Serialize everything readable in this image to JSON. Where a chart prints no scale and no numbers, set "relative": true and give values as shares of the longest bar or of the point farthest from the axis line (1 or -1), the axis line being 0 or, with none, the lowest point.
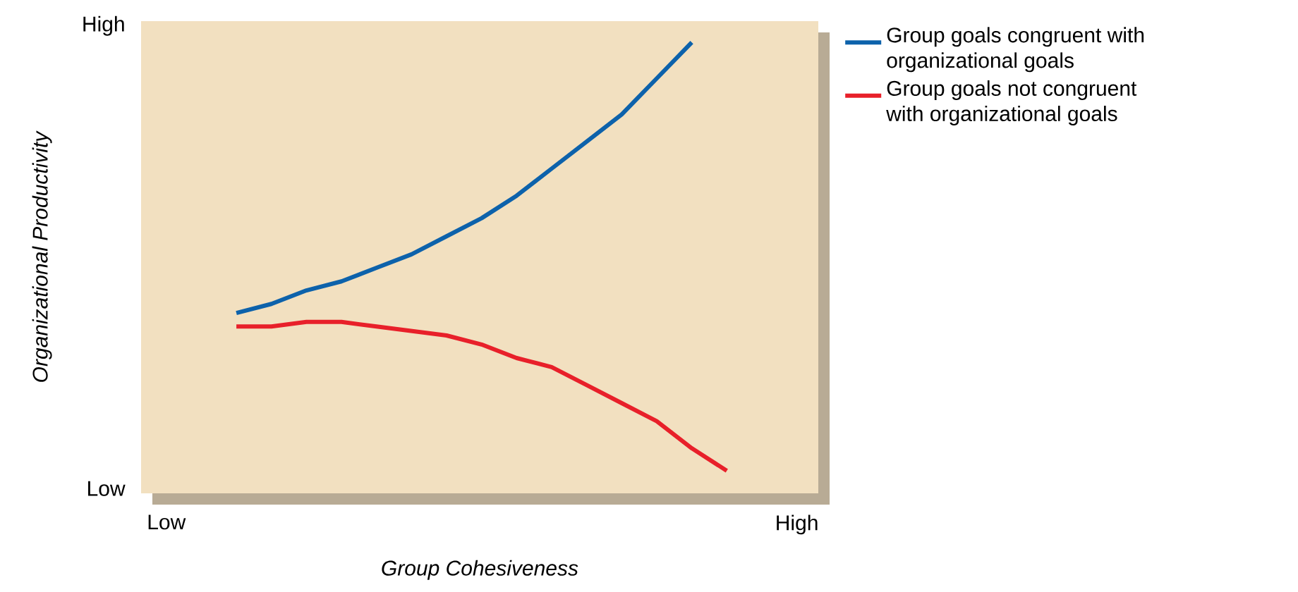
{
  "chart_data": {
    "type": "line",
    "relative": true,
    "xlabel": "Group Cohesiveness",
    "ylabel": "Organizational Productivity",
    "categories": [
      "Low",
      null,
      null,
      null,
      null,
      null,
      null,
      null,
      null,
      null,
      null,
      null,
      null,
      null,
      null,
      null,
      null,
      null,
      "High"
    ],
    "annotations": [
      "Low",
      "High"
    ],
    "series": [
      {
        "name": "Group goals congruent with organizational goals",
        "color": "#0d62ab",
        "values": [
          null,
          null,
          0.4,
          0.42,
          0.45,
          0.47,
          0.5,
          0.53,
          0.57,
          0.61,
          0.66,
          0.72,
          0.78,
          0.84,
          0.92,
          1.0,
          null,
          null,
          null
        ]
      },
      {
        "name": "Group goals not congruent with organizational goals",
        "color": "#e8202a",
        "values": [
          null,
          null,
          0.37,
          0.37,
          0.38,
          0.38,
          0.37,
          0.36,
          0.35,
          0.33,
          0.3,
          0.28,
          0.24,
          0.2,
          0.16,
          0.1,
          0.05,
          null,
          null
        ]
      }
    ],
    "legend": "top right",
    "marker": "none",
    "line_style": "solid"
  }
}
